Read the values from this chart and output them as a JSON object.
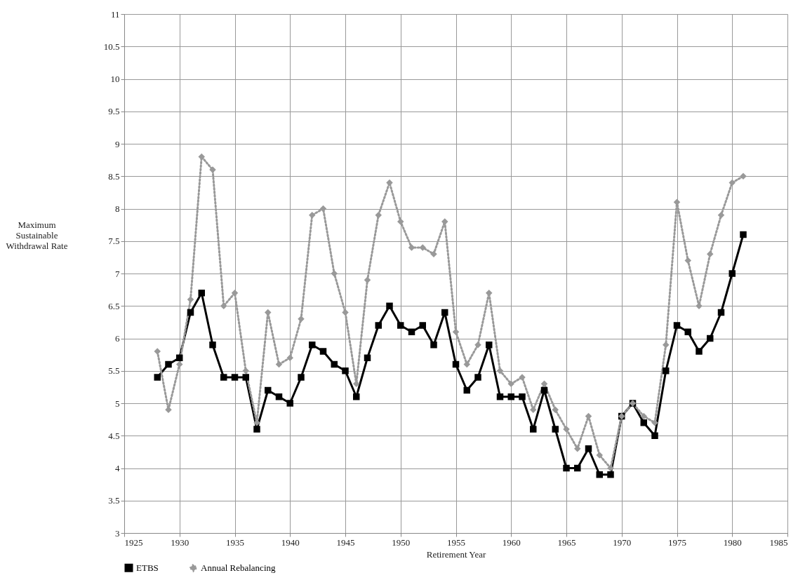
{
  "chart_data": {
    "type": "line",
    "xlabel": "Retirement Year",
    "ylabel": "Maximum Sustainable Withdrawal Rate",
    "x": [
      1928,
      1929,
      1930,
      1931,
      1932,
      1933,
      1934,
      1935,
      1936,
      1937,
      1938,
      1939,
      1940,
      1941,
      1942,
      1943,
      1944,
      1945,
      1946,
      1947,
      1948,
      1949,
      1950,
      1951,
      1952,
      1953,
      1954,
      1955,
      1956,
      1957,
      1958,
      1959,
      1960,
      1961,
      1962,
      1963,
      1964,
      1965,
      1966,
      1967,
      1968,
      1969,
      1970,
      1971,
      1972,
      1973,
      1974,
      1975,
      1976,
      1977,
      1978,
      1979,
      1980,
      1981
    ],
    "series": [
      {
        "name": "ETBS",
        "color": "#000000",
        "marker": "square",
        "line_style": "solid",
        "values": [
          5.4,
          5.6,
          5.7,
          6.4,
          6.7,
          5.9,
          5.4,
          5.4,
          5.4,
          4.6,
          5.2,
          5.1,
          5.0,
          5.4,
          5.9,
          5.8,
          5.6,
          5.5,
          5.1,
          5.7,
          6.2,
          6.5,
          6.2,
          6.1,
          6.2,
          5.9,
          6.4,
          5.6,
          5.2,
          5.4,
          5.9,
          5.1,
          5.1,
          5.1,
          4.6,
          5.2,
          4.6,
          4.0,
          4.0,
          4.3,
          3.9,
          3.9,
          4.8,
          5.0,
          4.7,
          4.5,
          5.5,
          6.2,
          6.1,
          5.8,
          6.0,
          6.4,
          7.0,
          7.6
        ]
      },
      {
        "name": "Annual Rebalancing",
        "color": "#999999",
        "marker": "diamond",
        "line_style": "dotted",
        "values": [
          5.8,
          4.9,
          5.6,
          6.6,
          8.8,
          8.6,
          6.5,
          6.7,
          5.5,
          4.7,
          6.4,
          5.6,
          5.7,
          6.3,
          7.9,
          8.0,
          7.0,
          6.4,
          5.3,
          6.9,
          7.9,
          8.4,
          7.8,
          7.4,
          7.4,
          7.3,
          7.8,
          6.1,
          5.6,
          5.9,
          6.7,
          5.5,
          5.3,
          5.4,
          4.9,
          5.3,
          4.9,
          4.6,
          4.3,
          4.8,
          4.2,
          4.0,
          4.8,
          5.0,
          4.8,
          4.7,
          5.9,
          8.1,
          7.2,
          6.5,
          7.3,
          7.9,
          8.4,
          8.5
        ]
      }
    ],
    "xlim": [
      1925,
      1985
    ],
    "xticks": [
      1925,
      1930,
      1935,
      1940,
      1945,
      1950,
      1955,
      1960,
      1965,
      1970,
      1975,
      1980,
      1985
    ],
    "ylim": [
      3,
      11
    ],
    "yticks": [
      3,
      3.5,
      4,
      4.5,
      5,
      5.5,
      6,
      6.5,
      7,
      7.5,
      8,
      8.5,
      9,
      9.5,
      10,
      10.5,
      11
    ],
    "grid": true,
    "legend": "bottom"
  }
}
